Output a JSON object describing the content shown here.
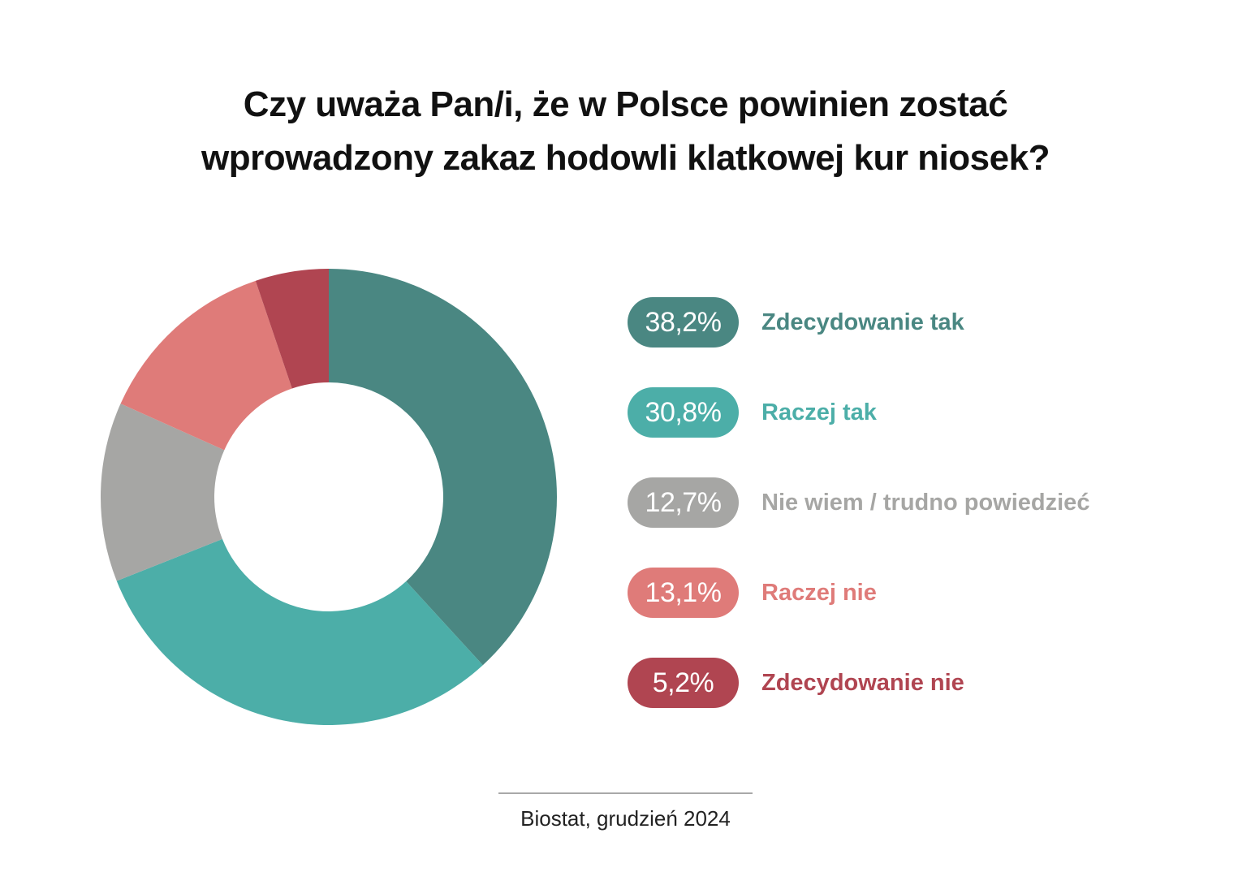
{
  "title": {
    "line1": "Czy uważa Pan/i, że w Polsce powinien zostać",
    "line2": "wprowadzony zakaz hodowli klatkowej kur niosek?"
  },
  "chart_data": {
    "type": "pie",
    "variant": "donut",
    "title": "Czy uważa Pan/i, że w Polsce powinien zostać wprowadzony zakaz hodowli klatkowej kur niosek?",
    "categories": [
      "Zdecydowanie tak",
      "Raczej tak",
      "Nie wiem / trudno powiedzieć",
      "Raczej nie",
      "Zdecydowanie nie"
    ],
    "values": [
      38.2,
      30.8,
      12.7,
      13.1,
      5.2
    ],
    "labels": [
      "38,2%",
      "30,8%",
      "12,7%",
      "13,1%",
      "5,2%"
    ],
    "colors": [
      "#4a8782",
      "#4caea8",
      "#a6a6a4",
      "#df7b79",
      "#b04551"
    ],
    "legend_position": "right"
  },
  "source": "Biostat, grudzień 2024"
}
